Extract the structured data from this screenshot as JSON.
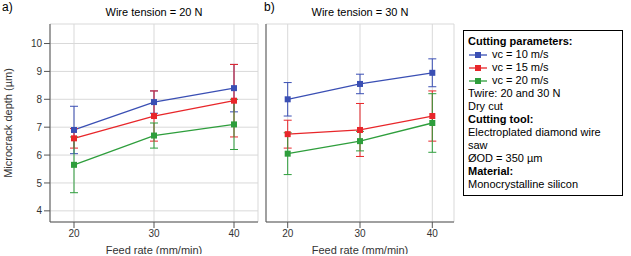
{
  "chart_data": [
    {
      "type": "line",
      "label": "a)",
      "title": "Wire tension = 20 N",
      "x_label": "Feed rate (mm/min)",
      "y_label": "Microcrack depth (µm)",
      "x": [
        20,
        30,
        40
      ],
      "xlim": [
        17,
        43
      ],
      "xticks": [
        20,
        30,
        40
      ],
      "ylim": [
        3.6,
        10.7
      ],
      "yticks": [
        4,
        5,
        6,
        7,
        8,
        9,
        10
      ],
      "grid": true,
      "marker": "square",
      "series": [
        {
          "name": "vc = 10 m/s",
          "color": "#3a4fb4",
          "values": [
            6.9,
            7.9,
            8.4
          ],
          "errors": [
            0.85,
            0.4,
            0.85
          ]
        },
        {
          "name": "vc = 15 m/s",
          "color": "#e8262a",
          "values": [
            6.6,
            7.4,
            7.95
          ],
          "errors": [
            0.35,
            0.9,
            1.3
          ]
        },
        {
          "name": "vc = 20 m/s",
          "color": "#2e9e3c",
          "values": [
            5.65,
            6.7,
            7.1
          ],
          "errors": [
            1.0,
            0.45,
            0.9
          ]
        }
      ]
    },
    {
      "type": "line",
      "label": "b)",
      "title": "Wire tension = 30 N",
      "x_label": "Feed rate (mm/min)",
      "x": [
        20,
        30,
        40
      ],
      "xlim": [
        17,
        43
      ],
      "xticks": [
        20,
        30,
        40
      ],
      "ylim": [
        3.6,
        10.7
      ],
      "yticks": [
        4,
        5,
        6,
        7,
        8,
        9,
        10
      ],
      "grid": true,
      "tick_labels": "x",
      "marker": "square",
      "series": [
        {
          "color": "#3a4fb4",
          "values": [
            8.0,
            8.55,
            8.95
          ],
          "errors": [
            0.6,
            0.35,
            0.5
          ]
        },
        {
          "color": "#e8262a",
          "values": [
            6.75,
            6.9,
            7.4
          ],
          "errors": [
            0.5,
            0.95,
            0.9
          ]
        },
        {
          "color": "#2e9e3c",
          "values": [
            6.05,
            6.5,
            7.15
          ],
          "errors": [
            0.75,
            0.35,
            1.05
          ]
        }
      ]
    }
  ],
  "side_panel": {
    "title": "Cutting parameters:",
    "lines": [
      "Twire: 20 and 30 N",
      "Dry cut"
    ],
    "sections": [
      {
        "title": "Cutting tool:",
        "lines": [
          "Electroplated diamond wire saw",
          "ØOD = 350 µm"
        ]
      },
      {
        "title": "Material:",
        "lines": [
          "Monocrystalline silicon"
        ]
      }
    ]
  }
}
